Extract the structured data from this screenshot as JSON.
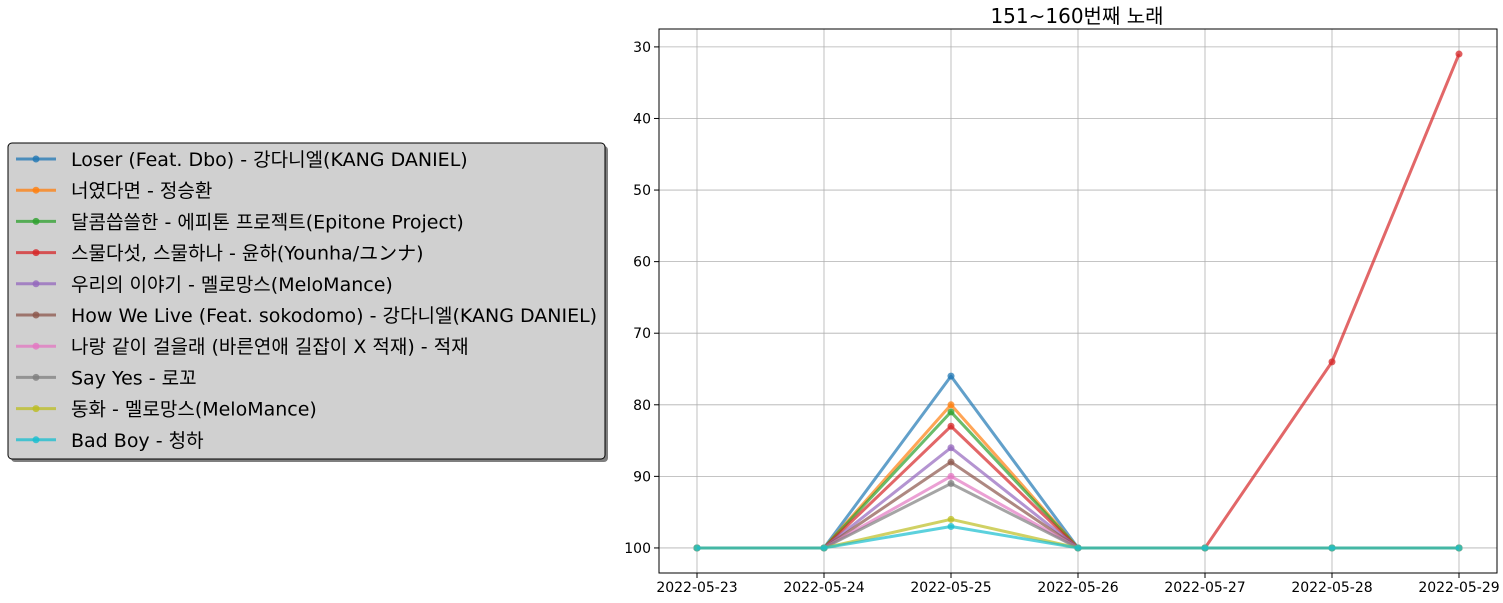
{
  "chart_data": {
    "type": "line",
    "title": "151~160번째 노래",
    "xlabel": "",
    "ylabel": "",
    "x": [
      "2022-05-23",
      "2022-05-24",
      "2022-05-25",
      "2022-05-26",
      "2022-05-27",
      "2022-05-28",
      "2022-05-29"
    ],
    "y_inverted": true,
    "ylim": [
      103.5,
      27.5
    ],
    "yticks": [
      30,
      40,
      50,
      60,
      70,
      80,
      90,
      100
    ],
    "grid": true,
    "legend_position": "outside-left",
    "series": [
      {
        "name": "Loser (Feat. Dbo) - 강다니엘(KANG DANIEL)",
        "color": "#1f77b4",
        "values": [
          100,
          100,
          76,
          100,
          100,
          100,
          100
        ]
      },
      {
        "name": "너였다면 - 정승환",
        "color": "#ff7f0e",
        "values": [
          100,
          100,
          80,
          100,
          100,
          100,
          100
        ]
      },
      {
        "name": "달콤씁쓸한 - 에피톤 프로젝트(Epitone Project)",
        "color": "#2ca02c",
        "values": [
          100,
          100,
          81,
          100,
          100,
          100,
          100
        ]
      },
      {
        "name": "스물다섯, 스물하나 - 윤하(Younha/ユンナ)",
        "color": "#d62728",
        "values": [
          100,
          100,
          83,
          100,
          100,
          74,
          31
        ]
      },
      {
        "name": "우리의 이야기 - 멜로망스(MeloMance)",
        "color": "#9467bd",
        "values": [
          100,
          100,
          86,
          100,
          100,
          100,
          100
        ]
      },
      {
        "name": "How We Live (Feat. sokodomo) - 강다니엘(KANG DANIEL)",
        "color": "#8c564b",
        "values": [
          100,
          100,
          88,
          100,
          100,
          100,
          100
        ]
      },
      {
        "name": "나랑 같이 걸을래 (바른연애 길잡이 X 적재) - 적재",
        "color": "#e377c2",
        "values": [
          100,
          100,
          90,
          100,
          100,
          100,
          100
        ]
      },
      {
        "name": "Say Yes - 로꼬",
        "color": "#7f7f7f",
        "values": [
          100,
          100,
          91,
          100,
          100,
          100,
          100
        ]
      },
      {
        "name": "동화 - 멜로망스(MeloMance)",
        "color": "#bcbd22",
        "values": [
          100,
          100,
          96,
          100,
          100,
          100,
          100
        ]
      },
      {
        "name": "Bad Boy - 청하",
        "color": "#17becf",
        "values": [
          100,
          100,
          97,
          100,
          100,
          100,
          100
        ]
      }
    ]
  }
}
